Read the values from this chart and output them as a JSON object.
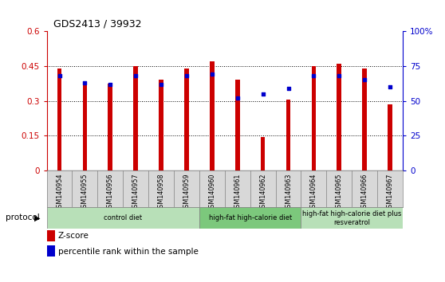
{
  "title": "GDS2413 / 39932",
  "samples": [
    "GSM140954",
    "GSM140955",
    "GSM140956",
    "GSM140957",
    "GSM140958",
    "GSM140959",
    "GSM140960",
    "GSM140961",
    "GSM140962",
    "GSM140963",
    "GSM140964",
    "GSM140965",
    "GSM140966",
    "GSM140967"
  ],
  "zscore": [
    0.44,
    0.385,
    0.375,
    0.45,
    0.39,
    0.44,
    0.47,
    0.39,
    0.145,
    0.305,
    0.45,
    0.46,
    0.44,
    0.285
  ],
  "percentile_pct": [
    68,
    63,
    62,
    68,
    62,
    68,
    69,
    52,
    55,
    59,
    68,
    68,
    65,
    60
  ],
  "bar_color": "#cc0000",
  "dot_color": "#0000cc",
  "left_ylim": [
    0,
    0.6
  ],
  "right_ylim": [
    0,
    100
  ],
  "left_yticks": [
    0,
    0.15,
    0.3,
    0.45,
    0.6
  ],
  "left_yticklabels": [
    "0",
    "0.15",
    "0.3",
    "0.45",
    "0.6"
  ],
  "right_yticks": [
    0,
    25,
    50,
    75,
    100
  ],
  "right_yticklabels": [
    "0",
    "25",
    "50",
    "75",
    "100%"
  ],
  "groups": [
    {
      "label": "control diet",
      "start": 0,
      "end": 6,
      "color": "#b8e0b8"
    },
    {
      "label": "high-fat high-calorie diet",
      "start": 6,
      "end": 10,
      "color": "#7cc87c"
    },
    {
      "label": "high-fat high-calorie diet plus\nresveratrol",
      "start": 10,
      "end": 14,
      "color": "#b8e0b8"
    }
  ],
  "protocol_label": "protocol",
  "legend_zscore": "Z-score",
  "legend_percentile": "percentile rank within the sample",
  "left_axis_color": "#cc0000",
  "right_axis_color": "#0000cc",
  "bar_width": 0.18,
  "xlabelarea_color": "#d8d8d8"
}
